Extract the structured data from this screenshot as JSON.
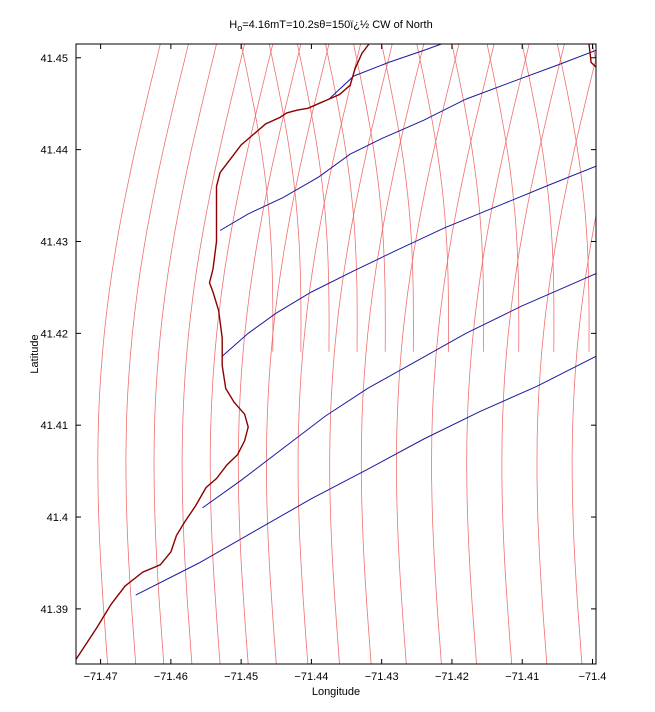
{
  "chart_data": {
    "type": "line",
    "title": "H",
    "title_subscript": "o",
    "title_rest": "=4.16mT=10.2sθ=150ï¿½ CW of North",
    "xlabel": "Longitude",
    "ylabel": "Latitude",
    "xlim": [
      -71.4735,
      -71.3995
    ],
    "ylim": [
      41.384,
      41.4515
    ],
    "xticks": [
      -71.47,
      -71.46,
      -71.45,
      -71.44,
      -71.43,
      -71.42,
      -71.41,
      -71.4
    ],
    "xtick_labels": [
      "−71.47",
      "−71.46",
      "−71.45",
      "−71.44",
      "−71.43",
      "−71.42",
      "−71.41",
      "−71.4"
    ],
    "yticks": [
      41.39,
      41.4,
      41.41,
      41.42,
      41.43,
      41.44,
      41.45
    ],
    "ytick_labels": [
      "41.39",
      "41.4",
      "41.41",
      "41.42",
      "41.43",
      "41.44",
      "41.45"
    ],
    "grid": false,
    "colors": {
      "coastline": "#8b0000",
      "wave_crests": "#1a1aa0",
      "wave_rays": "#f07070",
      "axes": "#000000"
    },
    "coastline": [
      [
        -71.4735,
        41.3845
      ],
      [
        -71.4705,
        41.388
      ],
      [
        -71.4685,
        41.3905
      ],
      [
        -71.4665,
        41.3925
      ],
      [
        -71.464,
        41.394
      ],
      [
        -71.4615,
        41.3948
      ],
      [
        -71.46,
        41.3962
      ],
      [
        -71.4592,
        41.398
      ],
      [
        -71.458,
        41.3995
      ],
      [
        -71.4565,
        41.4012
      ],
      [
        -71.455,
        41.4032
      ],
      [
        -71.4535,
        41.4042
      ],
      [
        -71.452,
        41.4057
      ],
      [
        -71.4505,
        41.4068
      ],
      [
        -71.4495,
        41.4083
      ],
      [
        -71.449,
        41.4098
      ],
      [
        -71.4495,
        41.4112
      ],
      [
        -71.451,
        41.4125
      ],
      [
        -71.4522,
        41.414
      ],
      [
        -71.4527,
        41.4165
      ],
      [
        -71.4527,
        41.4195
      ],
      [
        -71.4532,
        41.4225
      ],
      [
        -71.454,
        41.4245
      ],
      [
        -71.4545,
        41.4255
      ],
      [
        -71.454,
        41.427
      ],
      [
        -71.4535,
        41.43
      ],
      [
        -71.4535,
        41.433
      ],
      [
        -71.4535,
        41.436
      ],
      [
        -71.453,
        41.4375
      ],
      [
        -71.4515,
        41.439
      ],
      [
        -71.45,
        41.4405
      ],
      [
        -71.4485,
        41.4415
      ],
      [
        -71.4465,
        41.4428
      ],
      [
        -71.4445,
        41.4435
      ],
      [
        -71.4435,
        41.444
      ],
      [
        -71.442,
        41.4443
      ],
      [
        -71.4405,
        41.4445
      ],
      [
        -71.439,
        41.445
      ],
      [
        -71.4375,
        41.4455
      ],
      [
        -71.436,
        41.446
      ],
      [
        -71.4345,
        41.447
      ],
      [
        -71.4338,
        41.4488
      ],
      [
        -71.4328,
        41.4505
      ],
      [
        -71.4318,
        41.4515
      ]
    ],
    "coastline_right": [
      [
        -71.4005,
        41.4515
      ],
      [
        -71.4002,
        41.4495
      ],
      [
        -71.3995,
        41.449
      ]
    ],
    "wave_crests": [
      {
        "points": [
          [
            -71.465,
            41.3915
          ],
          [
            -71.456,
            41.395
          ],
          [
            -71.448,
            41.3985
          ],
          [
            -71.44,
            41.402
          ],
          [
            -71.432,
            41.4052
          ],
          [
            -71.424,
            41.4085
          ],
          [
            -71.416,
            41.4115
          ],
          [
            -71.408,
            41.4142
          ],
          [
            -71.3995,
            41.4175
          ]
        ]
      },
      {
        "points": [
          [
            -71.4555,
            41.401
          ],
          [
            -71.45,
            41.404
          ],
          [
            -71.444,
            41.4075
          ],
          [
            -71.438,
            41.411
          ],
          [
            -71.432,
            41.414
          ],
          [
            -71.425,
            41.417
          ],
          [
            -71.418,
            41.42
          ],
          [
            -71.41,
            41.423
          ],
          [
            -71.404,
            41.425
          ],
          [
            -71.3995,
            41.4265
          ]
        ]
      },
      {
        "points": [
          [
            -71.4527,
            41.4175
          ],
          [
            -71.449,
            41.42
          ],
          [
            -71.445,
            41.4222
          ],
          [
            -71.44,
            41.4245
          ],
          [
            -71.434,
            41.4268
          ],
          [
            -71.428,
            41.429
          ],
          [
            -71.421,
            41.4315
          ],
          [
            -71.413,
            41.434
          ],
          [
            -71.406,
            41.4362
          ],
          [
            -71.3995,
            41.4382
          ]
        ]
      },
      {
        "points": [
          [
            -71.453,
            41.4312
          ],
          [
            -71.449,
            41.433
          ],
          [
            -71.444,
            41.4348
          ],
          [
            -71.439,
            41.437
          ],
          [
            -71.4345,
            41.4395
          ],
          [
            -71.43,
            41.4412
          ],
          [
            -71.424,
            41.4432
          ],
          [
            -71.418,
            41.4455
          ],
          [
            -71.411,
            41.4475
          ],
          [
            -71.405,
            41.4492
          ],
          [
            -71.3995,
            41.4508
          ]
        ]
      },
      {
        "points": [
          [
            -71.4375,
            41.4455
          ],
          [
            -71.434,
            41.448
          ],
          [
            -71.429,
            41.4495
          ],
          [
            -71.424,
            41.4508
          ],
          [
            -71.4215,
            41.4515
          ]
        ]
      },
      {
        "points": [
          [
            -71.36,
            41.428
          ],
          [
            -71.3995,
            41.4515
          ]
        ]
      }
    ],
    "wave_rays_x_at_bottom": [
      -71.469,
      -71.465,
      -71.461,
      -71.457,
      -71.453,
      -71.449,
      -71.445,
      -71.4405,
      -71.436,
      -71.4315,
      -71.4265,
      -71.4215,
      -71.4165,
      -71.4115,
      -71.4065,
      -71.4015
    ],
    "wave_rays_x_at_top": [
      -71.45,
      -71.446,
      -71.442,
      -71.438,
      -71.434,
      -71.43,
      -71.425,
      -71.42,
      -71.415,
      -71.41,
      -71.405,
      -71.4
    ]
  }
}
